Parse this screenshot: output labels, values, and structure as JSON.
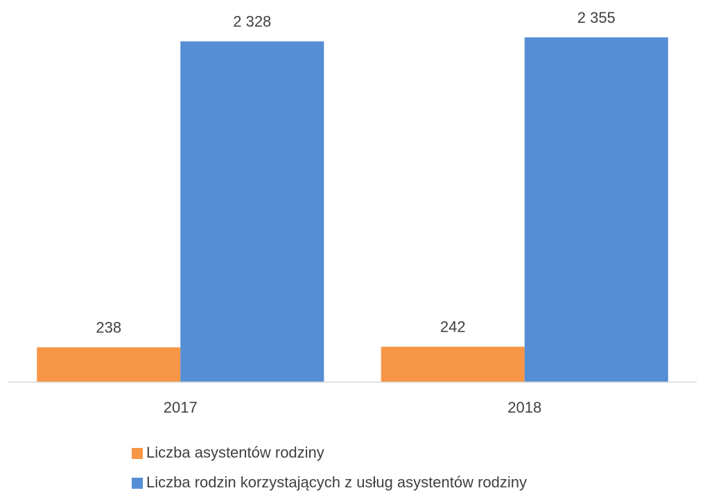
{
  "chart_data": {
    "type": "bar",
    "categories": [
      "2017",
      "2018"
    ],
    "series": [
      {
        "name": "Liczba asystentów rodziny",
        "color": "#f79646",
        "values": [
          238,
          242
        ]
      },
      {
        "name": "Liczba rodzin korzystających z usług asystentów rodziny",
        "color": "#558ed5",
        "values": [
          2328,
          2355
        ],
        "value_labels": [
          "2 328",
          "2 355"
        ]
      }
    ]
  }
}
